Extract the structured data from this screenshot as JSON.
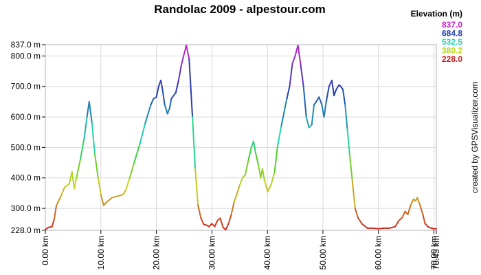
{
  "chart_data": {
    "type": "line",
    "title": "Randolac 2009 - alpestour.com",
    "credit": "created by GPSVisualizer.com",
    "xlabel": "",
    "ylabel": "",
    "xlim": [
      0,
      70.43
    ],
    "ylim": [
      228.0,
      837.0
    ],
    "x_ticks": [
      {
        "value": 0,
        "label": "0.00 km"
      },
      {
        "value": 10,
        "label": "10.00 km"
      },
      {
        "value": 20,
        "label": "20.00 km"
      },
      {
        "value": 30,
        "label": "30.00 km"
      },
      {
        "value": 40,
        "label": "40.00 km"
      },
      {
        "value": 50,
        "label": "50.00 km"
      },
      {
        "value": 60,
        "label": "60.00 km"
      },
      {
        "value": 70,
        "label": "70.00 km"
      },
      {
        "value": 70.43,
        "label": "70.43 km"
      }
    ],
    "y_ticks": [
      {
        "value": 228.0,
        "label": "228.0 m"
      },
      {
        "value": 300,
        "label": "300.0 m"
      },
      {
        "value": 400,
        "label": "400.0 m"
      },
      {
        "value": 500,
        "label": "500.0 m"
      },
      {
        "value": 600,
        "label": "600.0 m"
      },
      {
        "value": 700,
        "label": "700.0 m"
      },
      {
        "value": 800,
        "label": "800.0 m"
      },
      {
        "value": 837.0,
        "label": "837.0 m"
      }
    ],
    "grid": true,
    "legend": {
      "title": "Elevation (m)",
      "placement": "top-right",
      "entries": [
        {
          "label": "837.0",
          "color": "#cc22cc"
        },
        {
          "label": "684.8",
          "color": "#1f3fae"
        },
        {
          "label": "532.5",
          "color": "#20d8b0"
        },
        {
          "label": "380.2",
          "color": "#b8d820"
        },
        {
          "label": "228.0",
          "color": "#cc2020"
        }
      ]
    },
    "series": [
      {
        "x": [
          0,
          0.5,
          1.2,
          1.6,
          2.0,
          2.8,
          3.5,
          4.3,
          4.8,
          5.2,
          5.6,
          6.3,
          7.0,
          7.5,
          7.9,
          8.4,
          8.9,
          9.5,
          10.0,
          10.5,
          11.0,
          12.0,
          13.0,
          14.0,
          14.5,
          15.2,
          16.0,
          17.0,
          18.0,
          19.0,
          19.5,
          20.0,
          20.4,
          20.8,
          21.1,
          21.5,
          22.0,
          22.4,
          22.7,
          23.5,
          24.0,
          24.5,
          24.9,
          25.4,
          25.9,
          26.5,
          27.0,
          27.5,
          28.0,
          28.5,
          29.0,
          29.5,
          30.0,
          30.5,
          31.0,
          31.5,
          32.0,
          32.5,
          33.0,
          33.5,
          34.0,
          35.0,
          35.5,
          36.0,
          36.6,
          37.1,
          37.5,
          37.9,
          38.4,
          38.8,
          39.1,
          39.5,
          39.8,
          40.1,
          40.7,
          41.3,
          41.8,
          42.5,
          43.5,
          44.0,
          44.5,
          45.0,
          45.5,
          46.0,
          46.5,
          47.0,
          47.5,
          48.0,
          48.4,
          48.8,
          49.3,
          49.8,
          50.2,
          50.6,
          51.1,
          51.6,
          52.0,
          52.4,
          52.9,
          53.2,
          53.6,
          54.0,
          54.4,
          54.8,
          55.3,
          55.8,
          56.3,
          57.0,
          58.0,
          59.0,
          60.0,
          61.0,
          62.0,
          63.0,
          63.7,
          64.3,
          64.8,
          65.3,
          65.8,
          66.3,
          66.7,
          67.0,
          67.5,
          68.0,
          68.4,
          68.9,
          69.5,
          70.0,
          70.43
        ],
        "y": [
          230,
          237,
          240,
          265,
          310,
          340,
          370,
          380,
          420,
          365,
          400,
          460,
          530,
          600,
          650,
          580,
          480,
          400,
          345,
          310,
          320,
          335,
          340,
          345,
          360,
          400,
          450,
          510,
          580,
          640,
          660,
          665,
          700,
          720,
          690,
          640,
          610,
          630,
          660,
          680,
          720,
          770,
          800,
          835,
          790,
          600,
          430,
          310,
          270,
          248,
          245,
          240,
          250,
          240,
          260,
          268,
          238,
          230,
          250,
          280,
          320,
          375,
          400,
          410,
          460,
          500,
          520,
          480,
          440,
          400,
          430,
          390,
          370,
          355,
          380,
          420,
          500,
          570,
          660,
          700,
          775,
          800,
          835,
          770,
          700,
          600,
          565,
          575,
          640,
          650,
          665,
          640,
          600,
          650,
          700,
          720,
          670,
          690,
          705,
          700,
          690,
          640,
          560,
          480,
          390,
          300,
          270,
          250,
          235,
          235,
          233,
          235,
          235,
          240,
          260,
          270,
          290,
          280,
          310,
          330,
          325,
          335,
          310,
          280,
          250,
          240,
          235,
          233,
          233
        ]
      }
    ]
  }
}
